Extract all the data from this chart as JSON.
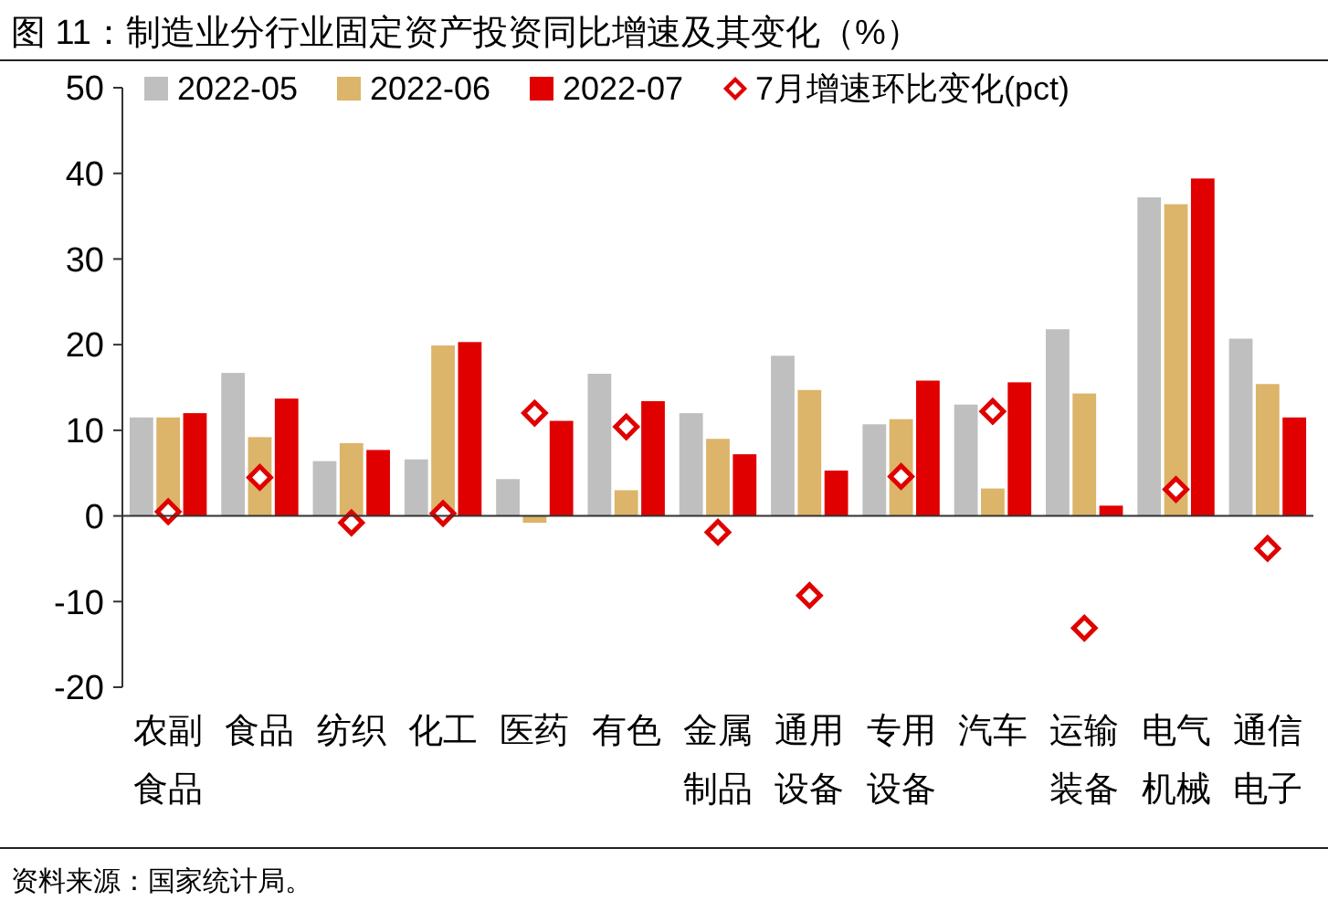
{
  "chart_data": {
    "type": "bar",
    "title": "图 11：制造业分行业固定资产投资同比增速及其变化（%）",
    "categories": [
      "农副食品",
      "食品",
      "纺织",
      "化工",
      "医药",
      "有色",
      "金属制品",
      "通用设备",
      "专用设备",
      "汽车",
      "运输装备",
      "电气机械",
      "通信电子"
    ],
    "series": [
      {
        "name": "2022-05",
        "color": "#bfbfbf",
        "values": [
          11.5,
          16.7,
          6.4,
          6.6,
          4.3,
          16.6,
          12,
          18.7,
          10.7,
          13,
          21.8,
          37.2,
          20.7
        ]
      },
      {
        "name": "2022-06",
        "color": "#dcb46a",
        "values": [
          11.5,
          9.2,
          8.5,
          19.9,
          -0.8,
          3,
          9,
          14.7,
          11.3,
          3.2,
          14.3,
          36.4,
          15.4
        ]
      },
      {
        "name": "2022-07",
        "color": "#e00000",
        "values": [
          12,
          13.7,
          7.7,
          20.3,
          11.1,
          13.4,
          7.2,
          5.3,
          15.8,
          15.6,
          1.2,
          39.4,
          11.5
        ]
      },
      {
        "name": "7月增速环比变化(pct)",
        "type": "scatter",
        "marker": "diamond",
        "color": "#e00000",
        "x": [
          "农副食品",
          "食品",
          "纺织",
          "化工",
          "医药",
          "有色",
          "金属制品",
          "通用设备",
          "专用设备",
          "汽车",
          "运输装备",
          "电气机械",
          "通信电子"
        ],
        "values": [
          0.5,
          4.5,
          -0.8,
          0.3,
          12,
          10.4,
          -1.9,
          -9.3,
          4.6,
          12.2,
          -13.1,
          3.1,
          -3.8
        ]
      }
    ],
    "ylim": [
      -20,
      50
    ],
    "yticks": [
      -20,
      -10,
      0,
      10,
      20,
      30,
      40,
      50
    ],
    "legend": "top",
    "annotations": [
      "资料来源：国家统计局。"
    ]
  }
}
